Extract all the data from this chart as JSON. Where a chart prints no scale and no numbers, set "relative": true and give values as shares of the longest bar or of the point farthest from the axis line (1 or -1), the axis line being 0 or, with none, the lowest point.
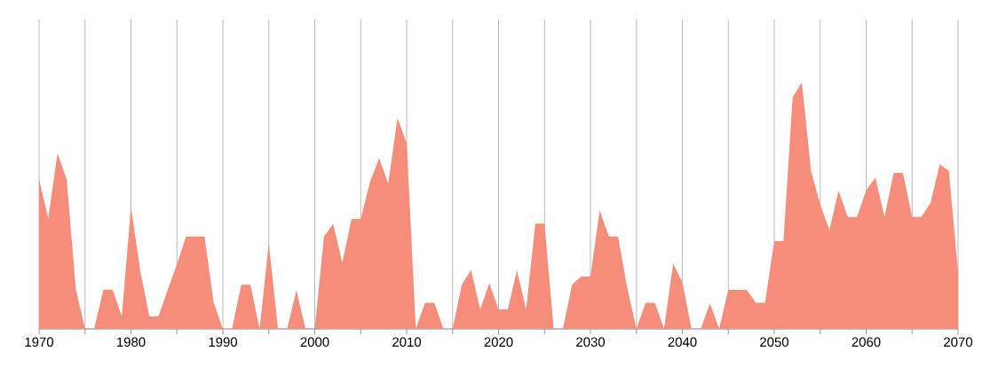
{
  "chart_data": {
    "type": "area",
    "relative": true,
    "grid": true,
    "x": [
      1970,
      1971,
      1972,
      1973,
      1974,
      1975,
      1976,
      1977,
      1978,
      1979,
      1980,
      1981,
      1982,
      1983,
      1984,
      1985,
      1986,
      1987,
      1988,
      1989,
      1990,
      1991,
      1992,
      1993,
      1994,
      1995,
      1996,
      1997,
      1998,
      1999,
      2000,
      2001,
      2002,
      2003,
      2004,
      2005,
      2006,
      2007,
      2008,
      2009,
      2010,
      2011,
      2012,
      2013,
      2014,
      2015,
      2016,
      2017,
      2018,
      2019,
      2020,
      2021,
      2022,
      2023,
      2024,
      2025,
      2026,
      2027,
      2028,
      2029,
      2030,
      2031,
      2032,
      2033,
      2034,
      2035,
      2036,
      2037,
      2038,
      2039,
      2040,
      2041,
      2042,
      2043,
      2044,
      2045,
      2046,
      2047,
      2048,
      2049,
      2050,
      2051,
      2052,
      2053,
      2054,
      2055,
      2056,
      2057,
      2058,
      2059,
      2060,
      2061,
      2062,
      2063,
      2064,
      2065,
      2066,
      2067,
      2068,
      2069,
      2070
    ],
    "series": [
      {
        "color": "#f68d7b",
        "values": [
          0.606,
          0.448,
          0.712,
          0.608,
          0.161,
          0,
          0,
          0.159,
          0.159,
          0.051,
          0.496,
          0.237,
          0.051,
          0.051,
          0.158,
          0.262,
          0.375,
          0.375,
          0.375,
          0.106,
          0,
          0,
          0.179,
          0.179,
          0,
          0.347,
          0,
          0,
          0.156,
          0,
          0,
          0.375,
          0.426,
          0.268,
          0.446,
          0.446,
          0.594,
          0.693,
          0.59,
          0.855,
          0.754,
          0,
          0.106,
          0.106,
          0,
          0,
          0.179,
          0.24,
          0.079,
          0.185,
          0.079,
          0.079,
          0.237,
          0.079,
          0.427,
          0.427,
          0,
          0,
          0.179,
          0.213,
          0.213,
          0.481,
          0.375,
          0.375,
          0.168,
          0,
          0.106,
          0.106,
          0,
          0.265,
          0.189,
          0,
          0,
          0.103,
          0,
          0.158,
          0.158,
          0.158,
          0.106,
          0.106,
          0.356,
          0.356,
          0.939,
          1,
          0.641,
          0.505,
          0.401,
          0.56,
          0.454,
          0.454,
          0.562,
          0.614,
          0.454,
          0.633,
          0.633,
          0.454,
          0.454,
          0.511,
          0.667,
          0.642,
          0.231
        ]
      }
    ],
    "xlim": [
      1970,
      2070
    ],
    "xticks": [
      1970,
      {
        "value": 1975,
        "label": null
      },
      1980,
      {
        "value": 1985,
        "label": null
      },
      1990,
      {
        "value": 1995,
        "label": null
      },
      2000,
      {
        "value": 2005,
        "label": null
      },
      2010,
      {
        "value": 2015,
        "label": null
      },
      2020,
      {
        "value": 2025,
        "label": null
      },
      2030,
      {
        "value": 2035,
        "label": null
      },
      2040,
      {
        "value": 2045,
        "label": null
      },
      2050,
      {
        "value": 2055,
        "label": null
      },
      2060,
      {
        "value": 2065,
        "label": null
      },
      2070
    ]
  }
}
